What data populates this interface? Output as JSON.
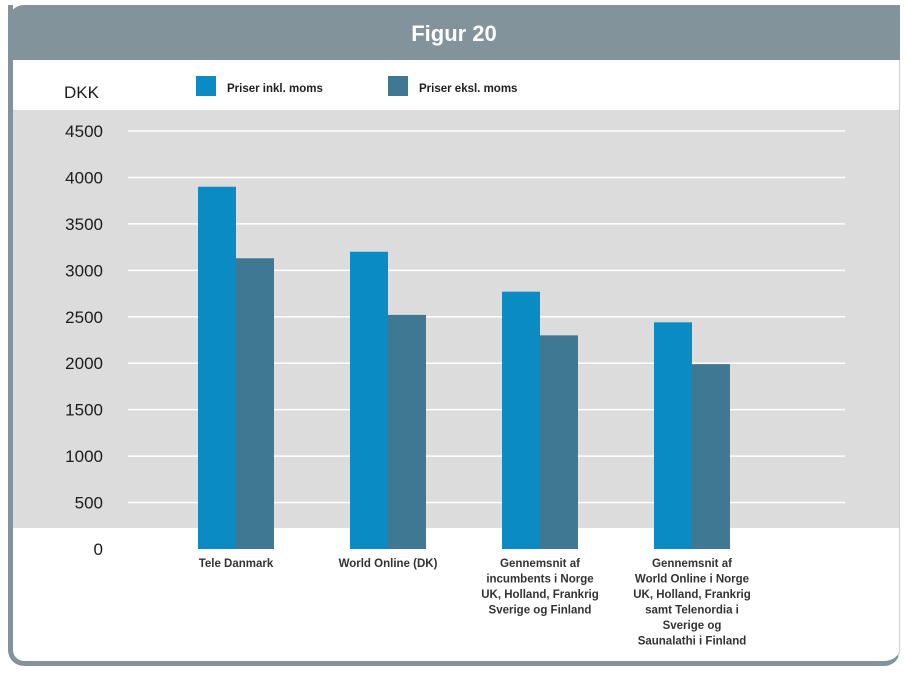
{
  "header": {
    "title": "Figur 20"
  },
  "chart_data": {
    "type": "bar",
    "ylabel": "DKK",
    "ylim": [
      0,
      4500
    ],
    "yticks": [
      0,
      500,
      1000,
      1500,
      2000,
      2500,
      3000,
      3500,
      4000,
      4500
    ],
    "grid": true,
    "legend_position": "top",
    "categories": [
      [
        "Tele Danmark"
      ],
      [
        "World Online (DK)"
      ],
      [
        "Gennemsnit af",
        "incumbents i Norge",
        "UK, Holland, Frankrig",
        "Sverige og Finland"
      ],
      [
        "Gennemsnit af",
        "World Online i Norge",
        "UK, Holland, Frankrig",
        "samt Telenordia i",
        "Sverige og",
        "Saunalathi i Finland"
      ]
    ],
    "series": [
      {
        "name": "Priser inkl. moms",
        "color": "#0a8bc4",
        "values": [
          3900,
          3200,
          2770,
          2440
        ]
      },
      {
        "name": "Priser eksl. moms",
        "color": "#3e7892",
        "values": [
          3130,
          2520,
          2300,
          1990
        ]
      }
    ]
  }
}
